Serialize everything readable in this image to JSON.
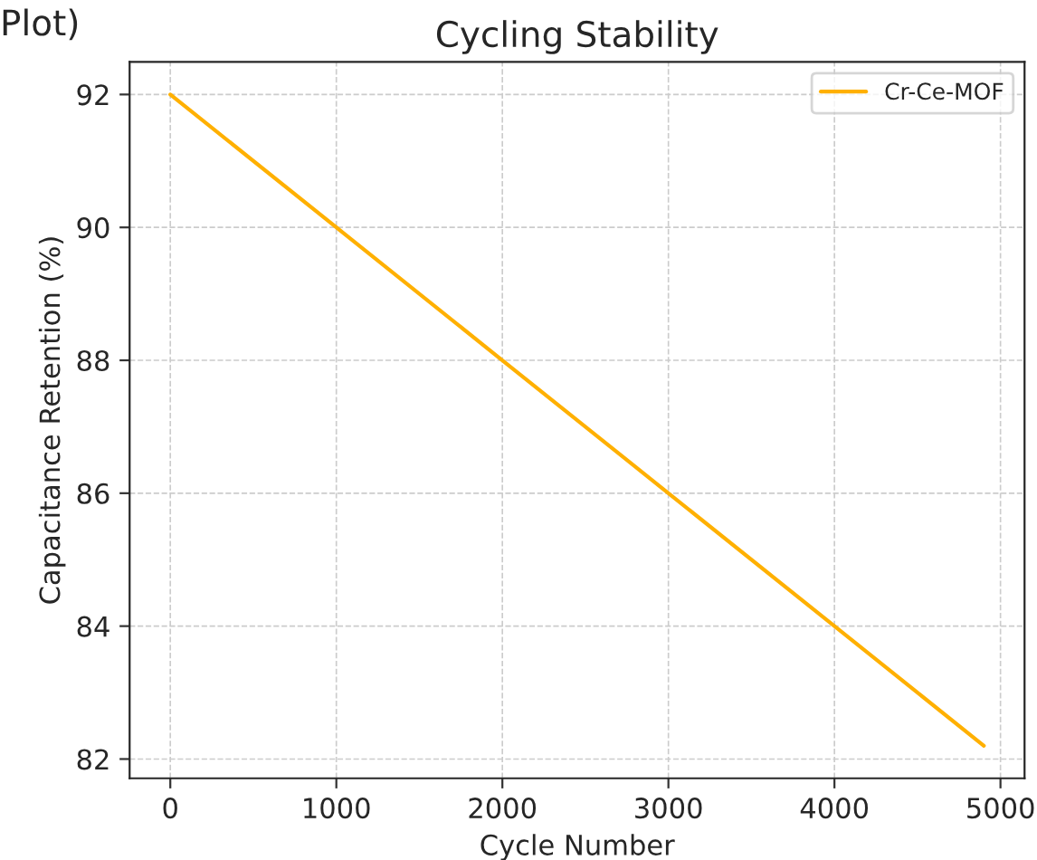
{
  "chart_data": {
    "type": "line",
    "title": "Cycling Stability",
    "xlabel": "Cycle Number",
    "ylabel": "Capacitance Retention (%)",
    "annotations": [
      "Plot)"
    ],
    "x": [
      0,
      1000,
      2000,
      3000,
      4000,
      4900
    ],
    "series": [
      {
        "name": "Cr-Ce-MOF",
        "color": "#ffb000",
        "values": [
          92,
          90,
          88,
          86,
          84,
          82.2
        ]
      }
    ],
    "xlim": [
      -245,
      5145
    ],
    "ylim": [
      81.71,
      92.49
    ],
    "xticks": [
      0,
      1000,
      2000,
      3000,
      4000,
      5000
    ],
    "yticks": [
      82,
      84,
      86,
      88,
      90,
      92
    ],
    "grid": true,
    "legend": "top right",
    "marker": "none",
    "line_style": "solid"
  }
}
